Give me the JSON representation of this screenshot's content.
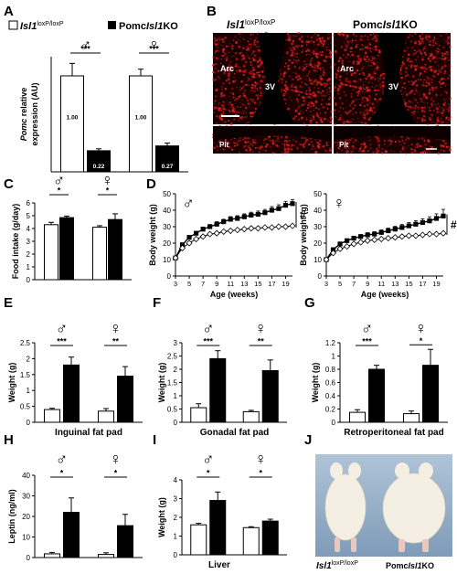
{
  "panel_letters": [
    "A",
    "B",
    "C",
    "D",
    "E",
    "F",
    "G",
    "H",
    "I",
    "J"
  ],
  "legend_A": {
    "ctrl_gene": "Isl1",
    "ctrl_sup": "loxP/loxP",
    "ko_pre": "Pomc",
    "ko_gene": "Isl1",
    "ko_suf": "KO"
  },
  "symbols": {
    "male": "♂",
    "female": "♀"
  },
  "sig": {
    "three": "***",
    "two": "**",
    "one": "*",
    "hash": "#"
  },
  "panel_B": {
    "header_left_gene": "Isl1",
    "header_left_sup": "loxP/loxP",
    "header_right_pre": "Pomc",
    "header_right_gene": "Isl1",
    "header_right_suf": "KO",
    "label_arc": "Arc",
    "label_3v": "3V",
    "label_pit": "Pit",
    "colors": {
      "bg": "#1a0000",
      "signal": "#e0201e",
      "ventricle": "#000000"
    }
  },
  "panel_J": {
    "left_gene": "Isl1",
    "left_sup": "loxP/loxP",
    "right_pre": "Pomc",
    "right_gene": "Isl1",
    "right_suf": "KO",
    "colors": {
      "bg_top": "#b0c4d8",
      "bg_bottom": "#7f9bb8",
      "mouse": "#f4efe2"
    }
  },
  "colors": {
    "ctrl_fill": "#ffffff",
    "ko_fill": "#000000",
    "axis": "#000000"
  },
  "chart_data": [
    {
      "panel": "A",
      "type": "bar",
      "ylabel_gene": "Pomc",
      "ylabel_rest": " relative",
      "ylabel_line2": "expression (AU)",
      "ylim": [
        0,
        1.2
      ],
      "groups": [
        "male",
        "female"
      ],
      "series": [
        {
          "values": [
            1.0,
            1.0
          ]
        },
        {
          "values": [
            0.22,
            0.27
          ]
        }
      ],
      "errors": [
        [
          0.13,
          0.07
        ],
        [
          0.02,
          0.03
        ]
      ],
      "bar_labels": [
        [
          "1.00",
          "1.00"
        ],
        [
          "0.22",
          "0.27"
        ]
      ],
      "significance": [
        "***",
        "***"
      ]
    },
    {
      "panel": "C",
      "type": "bar",
      "ylabel": "Food intake (g/day)",
      "ylim": [
        0,
        6
      ],
      "yticks": [
        0,
        1,
        2,
        3,
        4,
        5,
        6
      ],
      "groups": [
        "male",
        "female"
      ],
      "series": [
        {
          "values": [
            4.3,
            4.1
          ]
        },
        {
          "values": [
            4.85,
            4.7
          ]
        }
      ],
      "errors": [
        [
          0.18,
          0.12
        ],
        [
          0.12,
          0.45
        ]
      ],
      "significance": [
        "*",
        "*"
      ]
    },
    {
      "panel": "D-male",
      "type": "line",
      "ylabel": "Body weight (g)",
      "xlabel": "Age (weeks)",
      "xlim": [
        3,
        20
      ],
      "ylim": [
        0,
        50
      ],
      "xticks": [
        3,
        5,
        7,
        9,
        11,
        13,
        15,
        17,
        19
      ],
      "yticks": [
        0,
        10,
        20,
        30,
        40,
        50
      ],
      "x": [
        3,
        4,
        5,
        6,
        7,
        8,
        9,
        10,
        11,
        12,
        13,
        14,
        15,
        16,
        17,
        18,
        19,
        20
      ],
      "series": [
        {
          "values": [
            11,
            17,
            20,
            22.5,
            24,
            25.5,
            26,
            27,
            27.5,
            28,
            28.5,
            29,
            29,
            29.5,
            29.5,
            30,
            30,
            30.5
          ]
        },
        {
          "values": [
            11,
            19,
            23.5,
            26,
            28.5,
            30,
            31.5,
            33,
            34.5,
            35,
            36,
            37,
            37.5,
            38.5,
            40,
            41,
            43,
            44
          ]
        }
      ],
      "ko_errors": [
        0.5,
        0.8,
        1,
        1,
        1.2,
        1.3,
        1.5,
        1.5,
        1.6,
        1.7,
        1.8,
        1.8,
        2,
        2,
        2.2,
        2.3,
        2.4,
        2.5
      ],
      "significance": "#"
    },
    {
      "panel": "D-female",
      "type": "line",
      "ylabel": "Body weight (g)",
      "xlabel": "Age (weeks)",
      "xlim": [
        3,
        20
      ],
      "ylim": [
        0,
        50
      ],
      "xticks": [
        3,
        5,
        7,
        9,
        11,
        13,
        15,
        17,
        19
      ],
      "yticks": [
        0,
        10,
        20,
        30,
        40,
        50
      ],
      "x": [
        3,
        4,
        5,
        6,
        7,
        8,
        9,
        10,
        11,
        12,
        13,
        14,
        15,
        16,
        17,
        18,
        19,
        20
      ],
      "series": [
        {
          "values": [
            10,
            14,
            16.5,
            18,
            19.5,
            20.5,
            21.5,
            22,
            22.5,
            23,
            23.5,
            24,
            24.5,
            24.5,
            25,
            25.5,
            25.5,
            26
          ]
        },
        {
          "values": [
            10,
            16,
            19.5,
            21.5,
            23,
            24,
            25,
            25.5,
            26.5,
            27.5,
            28.5,
            29.5,
            30.5,
            31.5,
            32.5,
            33.5,
            35,
            36.5
          ]
        }
      ],
      "ko_errors": [
        0.5,
        0.8,
        1,
        1,
        1.1,
        1.2,
        1.3,
        1.4,
        1.5,
        1.6,
        1.7,
        1.8,
        2,
        2.1,
        2.3,
        2.5,
        2.8,
        4
      ],
      "significance": "#"
    },
    {
      "panel": "E",
      "type": "bar",
      "ylabel": "Weight (g)",
      "xlabel": "Inguinal fat pad",
      "ylim": [
        0,
        2.5
      ],
      "yticks": [
        0,
        0.5,
        1,
        1.5,
        2,
        2.5
      ],
      "groups": [
        "male",
        "female"
      ],
      "series": [
        {
          "values": [
            0.4,
            0.35
          ]
        },
        {
          "values": [
            1.8,
            1.45
          ]
        }
      ],
      "errors": [
        [
          0.04,
          0.08
        ],
        [
          0.25,
          0.3
        ]
      ],
      "significance": [
        "***",
        "**"
      ]
    },
    {
      "panel": "F",
      "type": "bar",
      "ylabel": "Weight (g)",
      "xlabel": "Gonadal fat pad",
      "ylim": [
        0,
        3
      ],
      "yticks": [
        0,
        0.5,
        1,
        1.5,
        2,
        2.5,
        3
      ],
      "groups": [
        "male",
        "female"
      ],
      "series": [
        {
          "values": [
            0.55,
            0.4
          ]
        },
        {
          "values": [
            2.4,
            1.95
          ]
        }
      ],
      "errors": [
        [
          0.15,
          0.05
        ],
        [
          0.3,
          0.4
        ]
      ],
      "significance": [
        "***",
        "**"
      ]
    },
    {
      "panel": "G",
      "type": "bar",
      "ylabel": "Weight (g)",
      "xlabel": "Retroperitoneal fat pad",
      "ylim": [
        0,
        1.2
      ],
      "yticks": [
        0,
        0.2,
        0.4,
        0.6,
        0.8,
        1,
        1.2
      ],
      "groups": [
        "male",
        "female"
      ],
      "series": [
        {
          "values": [
            0.15,
            0.13
          ]
        },
        {
          "values": [
            0.8,
            0.86
          ]
        }
      ],
      "errors": [
        [
          0.04,
          0.04
        ],
        [
          0.06,
          0.24
        ]
      ],
      "significance": [
        "***",
        "*"
      ]
    },
    {
      "panel": "H",
      "type": "bar",
      "ylabel": "Leptin (ng/ml)",
      "ylim": [
        0,
        40
      ],
      "yticks": [
        0,
        10,
        20,
        30,
        40
      ],
      "groups": [
        "male",
        "female"
      ],
      "series": [
        {
          "values": [
            1.8,
            1.5
          ]
        },
        {
          "values": [
            22,
            15.5
          ]
        }
      ],
      "errors": [
        [
          0.7,
          0.8
        ],
        [
          7,
          5.5
        ]
      ],
      "significance": [
        "*",
        "*"
      ]
    },
    {
      "panel": "I",
      "type": "bar",
      "ylabel": "Weight (g)",
      "xlabel": "Liver",
      "ylim": [
        0,
        4
      ],
      "yticks": [
        0,
        1,
        2,
        3,
        4
      ],
      "groups": [
        "male",
        "female"
      ],
      "series": [
        {
          "values": [
            1.6,
            1.45
          ]
        },
        {
          "values": [
            2.9,
            1.8
          ]
        }
      ],
      "errors": [
        [
          0.08,
          0.05
        ],
        [
          0.45,
          0.1
        ]
      ],
      "significance": [
        "*",
        "*"
      ]
    }
  ]
}
